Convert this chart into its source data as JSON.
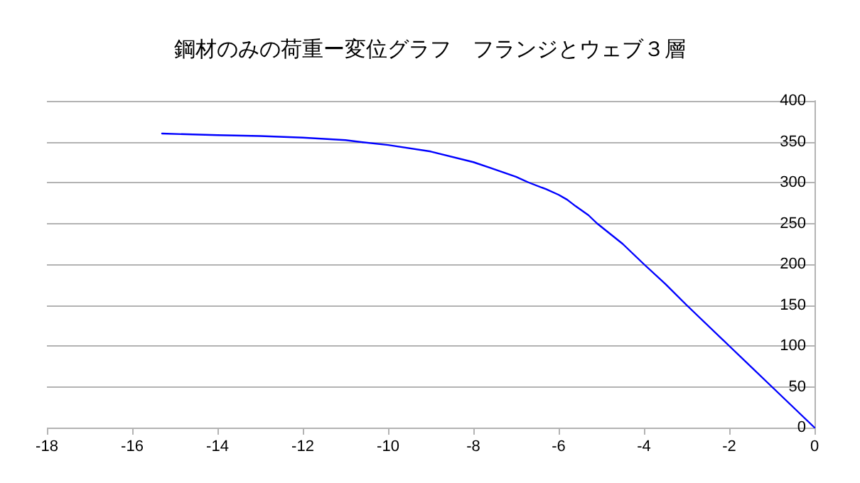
{
  "chart_data": {
    "type": "line",
    "title": "鋼材のみの荷重ー変位グラフ　フランジとウェブ３層",
    "series": [
      {
        "color": "#0000ff",
        "x": [
          -15.3,
          -14,
          -13,
          -12,
          -11,
          -10.7,
          -10,
          -9,
          -8,
          -7.6,
          -7,
          -6.7,
          -6.3,
          -6,
          -5.8,
          -5.6,
          -5.3,
          -5.1,
          -4.5,
          -4,
          -3.5,
          -3,
          -2,
          -1,
          0
        ],
        "values": [
          360,
          358,
          357,
          355,
          352,
          350,
          346,
          338,
          325,
          318,
          307,
          300,
          292,
          285,
          279,
          271,
          260,
          250,
          225,
          200,
          176,
          150,
          100,
          50,
          0
        ]
      }
    ],
    "xlim": [
      -18,
      0
    ],
    "xticks": [
      -18,
      -16,
      -14,
      -12,
      -10,
      -8,
      -6,
      -4,
      -2,
      0
    ],
    "ylim": [
      0,
      400
    ],
    "yticks": [
      0,
      50,
      100,
      150,
      200,
      250,
      300,
      350,
      400
    ],
    "grid": "y",
    "marker": "none",
    "line_style": "solid"
  }
}
